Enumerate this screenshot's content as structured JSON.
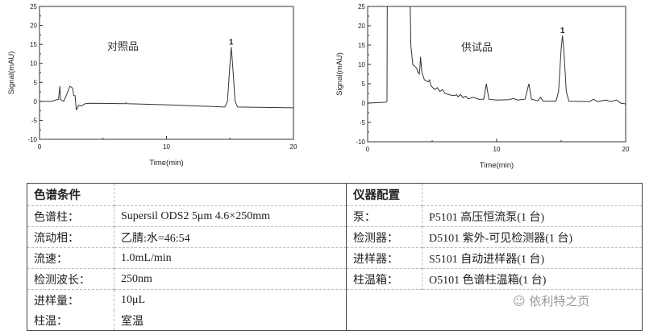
{
  "chart_data": [
    {
      "type": "line",
      "annotation": "对照品",
      "peak_label": {
        "text": "1",
        "x": 15.1,
        "y": 14.3
      },
      "xlabel": "Time(min)",
      "ylabel": "Signal(mAU)",
      "xlim": [
        0,
        20
      ],
      "ylim": [
        -10,
        25
      ],
      "xticks": [
        0,
        10,
        20
      ],
      "yticks": [
        -10,
        -5,
        0,
        5,
        10,
        15,
        20,
        25
      ],
      "grid": false,
      "line_color": "#333333",
      "x": [
        0,
        1,
        1.2,
        1.5,
        1.6,
        1.65,
        1.9,
        2.1,
        2.4,
        2.6,
        2.7,
        2.8,
        2.9,
        3.0,
        3.1,
        3.3,
        3.6,
        4,
        6.7,
        6.8,
        6.9,
        10,
        14.6,
        14.8,
        15.0,
        15.1,
        15.2,
        15.4,
        15.6,
        20
      ],
      "y": [
        0,
        0,
        0.3,
        0.5,
        4,
        0.5,
        0,
        1.5,
        4,
        3.5,
        1.5,
        1.5,
        -2.3,
        -1.5,
        -1,
        -1.2,
        -0.6,
        -0.5,
        -0.6,
        -0.4,
        -0.6,
        -0.9,
        -1.5,
        0,
        10,
        14.3,
        10,
        0,
        -1.5,
        -1.7
      ]
    },
    {
      "type": "line",
      "annotation": "供试品",
      "peak_label": {
        "text": "1",
        "x": 15.1,
        "y": 17.5
      },
      "xlabel": "Time(min)",
      "ylabel": "Signal(mAU)",
      "xlim": [
        0,
        20
      ],
      "ylim": [
        -10,
        25
      ],
      "xticks": [
        0,
        10,
        20
      ],
      "yticks": [
        -10,
        -5,
        0,
        5,
        10,
        15,
        20,
        25
      ],
      "grid": false,
      "line_color": "#333333",
      "x": [
        0,
        1.4,
        1.5,
        1.52,
        3.3,
        3.35,
        3.5,
        3.8,
        3.9,
        4.0,
        4.05,
        4.1,
        4.2,
        4.4,
        4.7,
        4.8,
        4.9,
        5.2,
        5.4,
        5.6,
        5.8,
        6,
        6.5,
        6.8,
        6.9,
        7,
        7.2,
        7.4,
        7.6,
        7.8,
        8.2,
        8.6,
        9.0,
        9.2,
        9.4,
        10,
        11,
        11.3,
        11.6,
        12.2,
        12.5,
        12.7,
        13.2,
        13.4,
        13.6,
        14.6,
        14.8,
        15.0,
        15.1,
        15.2,
        15.4,
        15.6,
        17.2,
        17.5,
        17.8,
        18.5,
        18.8,
        19.3,
        19.6,
        20
      ],
      "y": [
        0,
        0.2,
        0.5,
        25,
        25,
        15,
        10,
        9,
        8,
        7.5,
        9,
        12,
        8,
        6,
        5.5,
        6,
        4.5,
        3.5,
        4,
        3,
        3.5,
        2.5,
        2,
        2,
        2.2,
        1.6,
        2.2,
        1.4,
        1.8,
        1.1,
        1.5,
        1,
        1,
        5,
        1,
        0.8,
        0.9,
        1.2,
        0.8,
        1,
        5,
        1,
        0.6,
        1.5,
        0.5,
        0.5,
        3,
        14,
        17.5,
        14,
        3,
        0.5,
        0.4,
        1,
        0.4,
        0.8,
        0.4,
        0.8,
        0,
        -0.2
      ]
    }
  ],
  "table": {
    "left_header": "色谱条件",
    "right_header": "仪器配置",
    "left_rows": [
      {
        "label": "色谱柱：",
        "value": "Supersil ODS2    5μm 4.6×250mm"
      },
      {
        "label": "流动相：",
        "value": "乙腈:水=46:54"
      },
      {
        "label": "流速：",
        "value": "1.0mL/min"
      },
      {
        "label": "检测波长：",
        "value": "250nm"
      },
      {
        "label": "进样量：",
        "value": "10μL"
      },
      {
        "label": "柱温：",
        "value": "室温"
      }
    ],
    "right_rows": [
      {
        "label": "泵：",
        "value": "P5101 高压恒流泵(1 台)"
      },
      {
        "label": "检测器：",
        "value": "D5101 紫外-可见检测器(1 台)"
      },
      {
        "label": "进样器：",
        "value": "S5101 自动进样器(1 台)"
      },
      {
        "label": "柱温箱：",
        "value": "O5101 色谱柱温箱(1 台)"
      }
    ]
  },
  "watermark": "依利特之页"
}
